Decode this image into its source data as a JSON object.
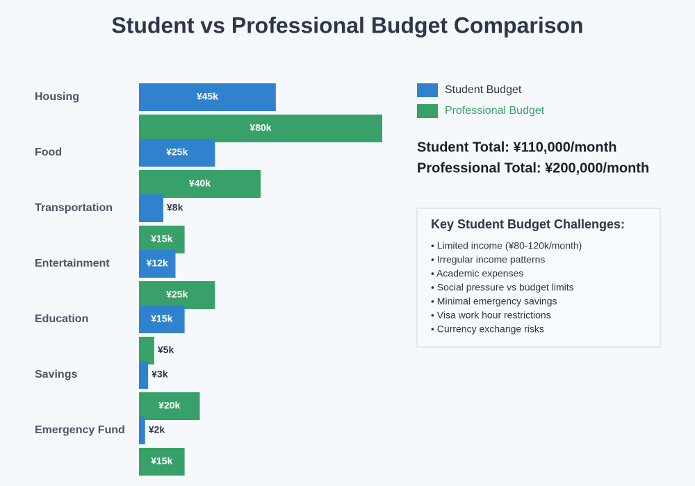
{
  "chart_data": {
    "type": "bar",
    "orientation": "horizontal",
    "title": "Student vs Professional Budget Comparison",
    "categories": [
      "Housing",
      "Food",
      "Transportation",
      "Entertainment",
      "Education",
      "Savings",
      "Emergency Fund"
    ],
    "series": [
      {
        "name": "Student Budget",
        "color": "#3182ce",
        "values": [
          45,
          25,
          8,
          12,
          15,
          3,
          2
        ],
        "value_labels": [
          "¥45k",
          "¥25k",
          "¥8k",
          "¥12k",
          "¥15k",
          "¥3k",
          "¥2k"
        ]
      },
      {
        "name": "Professional Budget",
        "color": "#38a169",
        "values": [
          80,
          40,
          15,
          25,
          5,
          20,
          15
        ],
        "value_labels": [
          "¥80k",
          "¥40k",
          "¥15k",
          "¥25k",
          "¥5k",
          "¥20k",
          "¥15k"
        ]
      }
    ],
    "legend": "top-right",
    "annotations": [
      "Student Total: ¥110,000/month",
      "Professional Total: ¥200,000/month"
    ],
    "notes": {
      "title": "Key Student Budget Challenges:",
      "items": [
        "• Limited income (¥80-120k/month)",
        "• Irregular income patterns",
        "• Academic expenses",
        "• Social pressure vs budget limits",
        "• Minimal emergency savings",
        "• Visa work hour restrictions",
        "• Currency exchange risks"
      ]
    }
  }
}
